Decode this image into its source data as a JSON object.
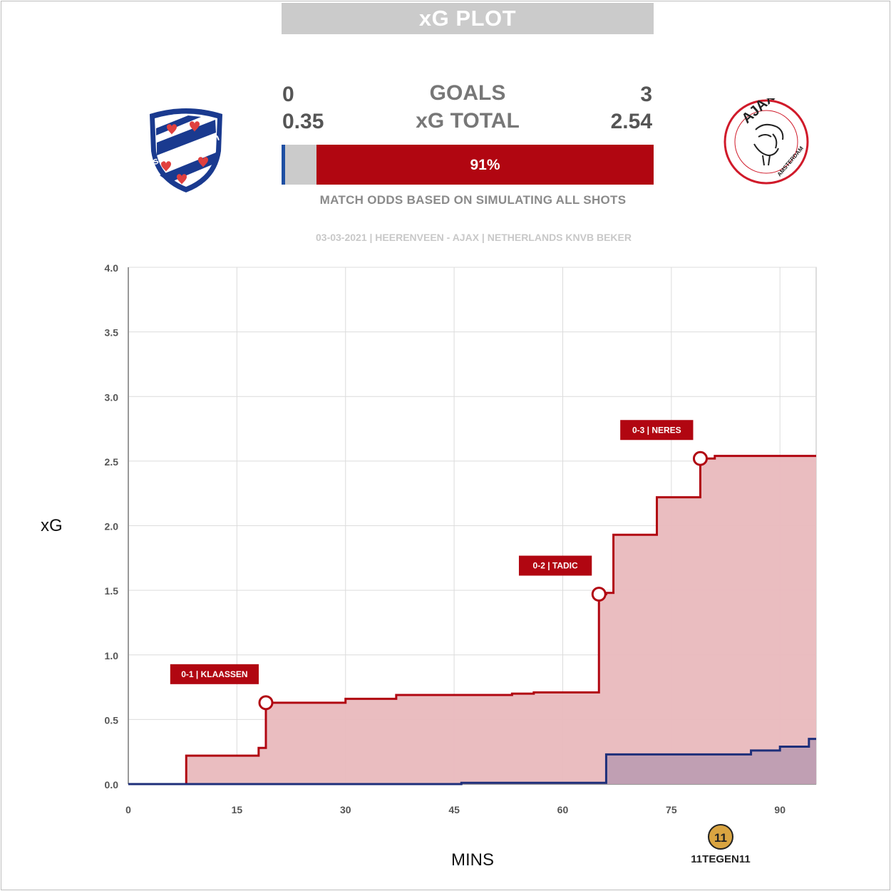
{
  "header": {
    "title": "xG PLOT"
  },
  "score": {
    "home_goals": "0",
    "goals_label": "GOALS",
    "away_goals": "3",
    "home_xg": "0.35",
    "xg_label": "xG TOTAL",
    "away_xg": "2.54"
  },
  "odds": {
    "away_win_pct": "91%",
    "home_win_pct_value": 1,
    "draw_pct_value": 8,
    "away_win_pct_value": 91,
    "caption": "MATCH ODDS BASED ON SIMULATING ALL SHOTS"
  },
  "match_info": "03-03-2021 | HEERENVEEN - AJAX | NETHERLANDS KNVB BEKER",
  "logos": {
    "home_text": "sc Heerenveen",
    "away_text": "AJAX",
    "away_subtext": "AMSTERDAM",
    "brand_text": "11TEGEN11"
  },
  "colors": {
    "home": "#1e2f7a",
    "away": "#b10611",
    "away_fill": "#e9b9bd",
    "home_fill": "#b99ab0"
  },
  "chart_data": {
    "type": "line",
    "xlabel": "MINS",
    "ylabel": "xG",
    "xlim": [
      0,
      95
    ],
    "ylim": [
      0,
      4
    ],
    "x_ticks": [
      "0",
      "15",
      "30",
      "45",
      "60",
      "75",
      "90"
    ],
    "y_ticks": [
      "0.0",
      "0.5",
      "1.0",
      "1.5",
      "2.0",
      "2.5",
      "3.0",
      "3.5",
      "4.0"
    ],
    "grid": true,
    "series": [
      {
        "team": "away",
        "x": [
          0,
          8,
          18,
          19,
          30,
          37,
          53,
          56,
          65,
          66,
          67,
          73,
          79,
          81,
          95
        ],
        "y": [
          0,
          0.22,
          0.28,
          0.63,
          0.66,
          0.69,
          0.7,
          0.71,
          1.47,
          1.48,
          1.93,
          2.22,
          2.52,
          2.54,
          2.54
        ]
      },
      {
        "team": "home",
        "x": [
          0,
          46,
          66,
          86,
          90,
          94,
          95
        ],
        "y": [
          0,
          0.01,
          0.23,
          0.26,
          0.29,
          0.35,
          0.35
        ]
      }
    ],
    "annotations": [
      {
        "label": "0-1 | KLAASSEN",
        "x": 19,
        "y": 0.63
      },
      {
        "label": "0-2 | TADIC",
        "x": 65,
        "y": 1.47
      },
      {
        "label": "0-3 | NERES",
        "x": 79,
        "y": 2.52
      }
    ]
  }
}
